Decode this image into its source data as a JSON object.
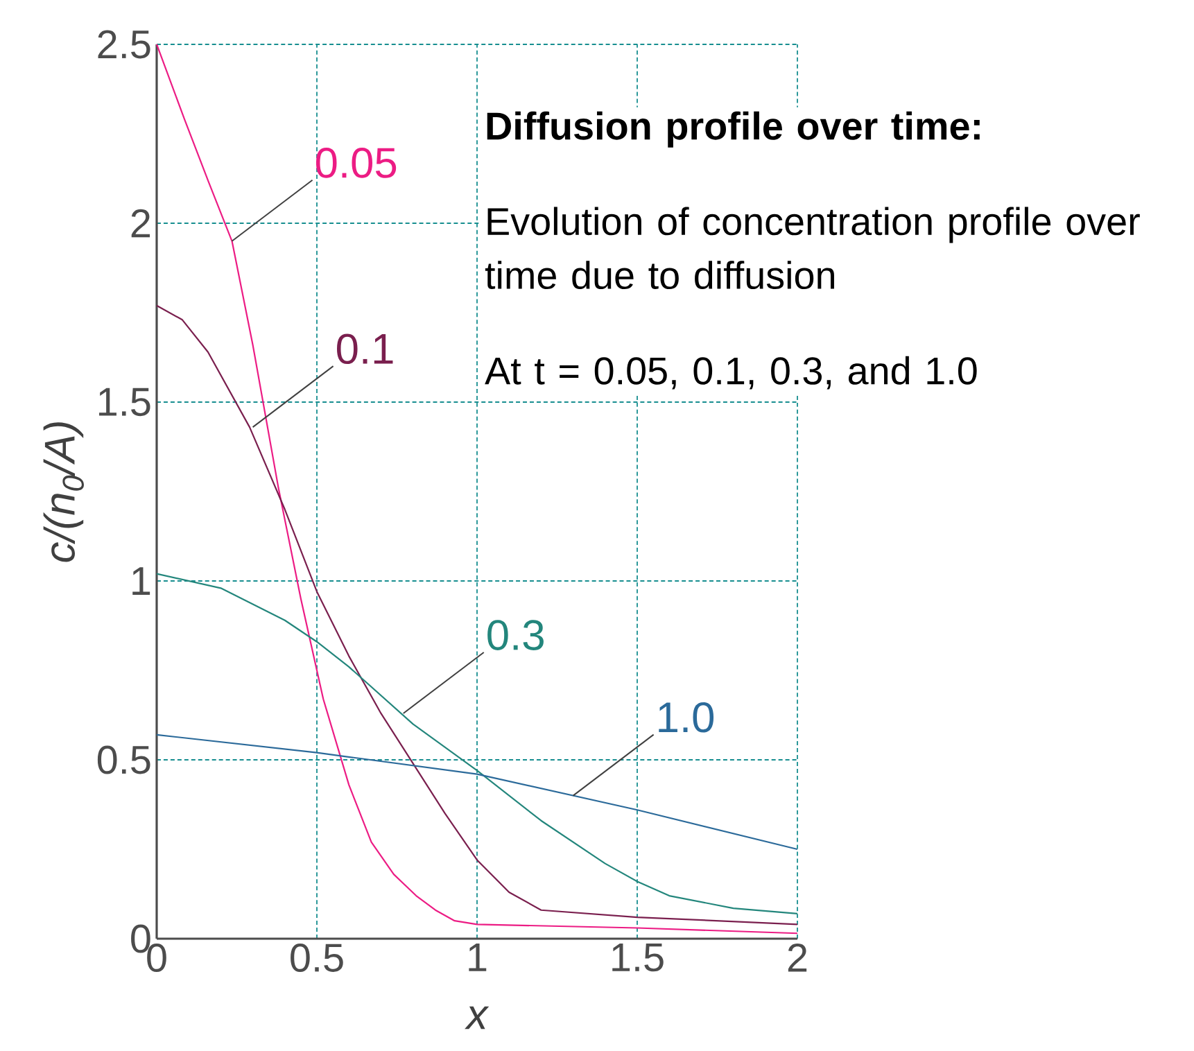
{
  "chart_data": {
    "type": "line",
    "title": "Diffusion profile over time:",
    "annotations": [
      "Evolution of concentration profile over time due to diffusion",
      "At t = 0.05, 0.1, 0.3, and 1.0",
      {
        "text": "0.05",
        "x": 0.235,
        "y": 1.95
      },
      {
        "text": "0.1",
        "x": 0.3,
        "y": 1.43
      },
      {
        "text": "0.3",
        "x": 0.77,
        "y": 0.63
      },
      {
        "text": "1.0",
        "x": 1.3,
        "y": 0.4
      }
    ],
    "xlabel": "x",
    "ylabel": "c/(n$_{0}$/A)",
    "series": [
      {
        "color": "#ec1c84",
        "x": [
          0,
          0.087,
          0.16,
          0.235,
          0.3,
          0.38,
          0.45,
          0.52,
          0.6,
          0.67,
          0.74,
          0.81,
          0.87,
          0.93,
          1.0,
          1.5,
          2.0
        ],
        "values": [
          2.5,
          2.29,
          2.12,
          1.95,
          1.66,
          1.26,
          0.95,
          0.67,
          0.43,
          0.27,
          0.18,
          0.12,
          0.08,
          0.05,
          0.04,
          0.03,
          0.015
        ]
      },
      {
        "color": "#7a1f4e",
        "x": [
          0,
          0.08,
          0.16,
          0.29,
          0.4,
          0.5,
          0.6,
          0.7,
          0.8,
          0.9,
          1.0,
          1.1,
          1.2,
          1.5,
          2.0
        ],
        "values": [
          1.77,
          1.73,
          1.64,
          1.43,
          1.2,
          0.97,
          0.79,
          0.63,
          0.49,
          0.35,
          0.22,
          0.13,
          0.08,
          0.06,
          0.04
        ]
      },
      {
        "color": "#23867c",
        "x": [
          0,
          0.2,
          0.4,
          0.5,
          0.6,
          0.8,
          1.0,
          1.2,
          1.4,
          1.5,
          1.6,
          1.8,
          2.0
        ],
        "values": [
          1.02,
          0.98,
          0.89,
          0.83,
          0.76,
          0.6,
          0.47,
          0.33,
          0.21,
          0.16,
          0.12,
          0.085,
          0.07
        ]
      },
      {
        "color": "#2b6a9a",
        "x": [
          0,
          0.5,
          1.0,
          1.5,
          2.0
        ],
        "values": [
          0.57,
          0.52,
          0.46,
          0.36,
          0.25
        ]
      }
    ],
    "xlim": [
      0,
      2
    ],
    "ylim": [
      0,
      2.5
    ],
    "xticks": [
      0,
      0.5,
      1,
      1.5,
      2
    ],
    "yticks": [
      0,
      0.5,
      1,
      1.5,
      2,
      2.5
    ],
    "grid": true,
    "marker": "none",
    "line_style": "solid"
  }
}
